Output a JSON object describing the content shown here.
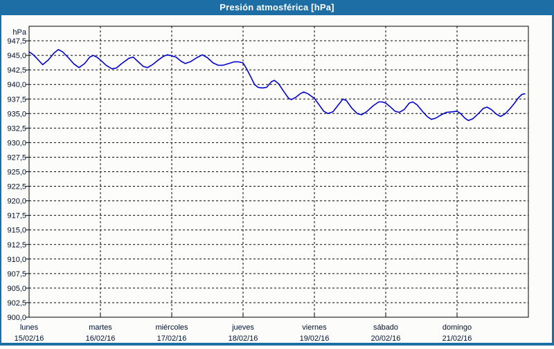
{
  "window": {
    "title": "Presión atmosférica [hPa]"
  },
  "colors": {
    "frame_blue": "#1c6ea4",
    "title_text": "#ffffff",
    "plot_border": "#000000",
    "grid": "#000000",
    "axis_label": "#001030",
    "line_blue": "#0000d0",
    "background": "#fcfdfa"
  },
  "chart_data": {
    "type": "line",
    "title": "Presión atmosférica [hPa]",
    "ylabel": "hPa",
    "unit_label": "hPa",
    "ylim": [
      900,
      950
    ],
    "ytick_step": 2.5,
    "yticks": [
      947.5,
      945.0,
      942.5,
      940.0,
      937.5,
      935.0,
      932.5,
      930.0,
      927.5,
      925.0,
      922.5,
      920.0,
      917.5,
      915.0,
      912.5,
      910.0,
      907.5,
      905.0,
      902.5,
      900.0
    ],
    "ytick_labels": [
      "947,5",
      "945,0",
      "942,5",
      "940,0",
      "937,5",
      "935,0",
      "932,5",
      "930,0",
      "927,5",
      "925,0",
      "922,5",
      "920,0",
      "917,5",
      "915,0",
      "912,5",
      "910,0",
      "907,5",
      "905,0",
      "902,5",
      "900,0"
    ],
    "grid": "dashed",
    "legend": "none",
    "x_axis": {
      "days": [
        {
          "name": "lunes",
          "date": "15/02/16"
        },
        {
          "name": "martes",
          "date": "16/02/16"
        },
        {
          "name": "miércoles",
          "date": "17/02/16"
        },
        {
          "name": "jueves",
          "date": "18/02/16"
        },
        {
          "name": "viernes",
          "date": "19/02/16"
        },
        {
          "name": "sábado",
          "date": "20/02/16"
        },
        {
          "name": "domingo",
          "date": "21/02/16"
        }
      ]
    },
    "series": [
      {
        "name": "Presión atmosférica",
        "color": "#0000d0",
        "x_unit": "days_from_monday",
        "y_unit": "hPa",
        "points": [
          [
            0.0,
            945.6
          ],
          [
            0.05,
            945.2
          ],
          [
            0.1,
            944.6
          ],
          [
            0.19,
            943.4
          ],
          [
            0.27,
            944.2
          ],
          [
            0.35,
            945.4
          ],
          [
            0.41,
            946.0
          ],
          [
            0.47,
            945.6
          ],
          [
            0.55,
            944.6
          ],
          [
            0.63,
            943.5
          ],
          [
            0.7,
            942.9
          ],
          [
            0.78,
            943.6
          ],
          [
            0.85,
            944.7
          ],
          [
            0.9,
            945.0
          ],
          [
            0.95,
            944.7
          ],
          [
            1.0,
            944.2
          ],
          [
            1.08,
            943.3
          ],
          [
            1.16,
            942.7
          ],
          [
            1.22,
            942.8
          ],
          [
            1.3,
            943.6
          ],
          [
            1.4,
            944.5
          ],
          [
            1.46,
            944.7
          ],
          [
            1.52,
            944.0
          ],
          [
            1.6,
            943.1
          ],
          [
            1.66,
            942.9
          ],
          [
            1.73,
            943.4
          ],
          [
            1.8,
            944.1
          ],
          [
            1.88,
            944.8
          ],
          [
            1.94,
            945.1
          ],
          [
            2.0,
            944.9
          ],
          [
            2.06,
            944.7
          ],
          [
            2.13,
            944.0
          ],
          [
            2.19,
            943.6
          ],
          [
            2.26,
            943.9
          ],
          [
            2.35,
            944.6
          ],
          [
            2.43,
            945.1
          ],
          [
            2.5,
            944.6
          ],
          [
            2.58,
            943.7
          ],
          [
            2.65,
            943.3
          ],
          [
            2.72,
            943.3
          ],
          [
            2.8,
            943.6
          ],
          [
            2.88,
            943.9
          ],
          [
            2.93,
            943.9
          ],
          [
            3.0,
            943.7
          ],
          [
            3.05,
            942.7
          ],
          [
            3.1,
            941.5
          ],
          [
            3.16,
            940.0
          ],
          [
            3.21,
            939.5
          ],
          [
            3.27,
            939.4
          ],
          [
            3.33,
            939.5
          ],
          [
            3.4,
            940.5
          ],
          [
            3.44,
            940.7
          ],
          [
            3.5,
            940.1
          ],
          [
            3.57,
            938.8
          ],
          [
            3.64,
            937.6
          ],
          [
            3.68,
            937.4
          ],
          [
            3.74,
            937.8
          ],
          [
            3.8,
            938.4
          ],
          [
            3.85,
            938.7
          ],
          [
            3.91,
            938.4
          ],
          [
            4.0,
            937.6
          ],
          [
            4.06,
            936.6
          ],
          [
            4.13,
            935.4
          ],
          [
            4.19,
            935.0
          ],
          [
            4.26,
            935.3
          ],
          [
            4.33,
            936.4
          ],
          [
            4.4,
            937.5
          ],
          [
            4.45,
            937.2
          ],
          [
            4.52,
            936.0
          ],
          [
            4.6,
            935.0
          ],
          [
            4.66,
            934.8
          ],
          [
            4.73,
            935.3
          ],
          [
            4.82,
            936.3
          ],
          [
            4.9,
            937.0
          ],
          [
            4.95,
            937.0
          ],
          [
            5.0,
            936.8
          ],
          [
            5.06,
            936.2
          ],
          [
            5.13,
            935.4
          ],
          [
            5.19,
            935.2
          ],
          [
            5.26,
            935.7
          ],
          [
            5.33,
            936.8
          ],
          [
            5.38,
            937.0
          ],
          [
            5.44,
            936.5
          ],
          [
            5.52,
            935.3
          ],
          [
            5.58,
            934.5
          ],
          [
            5.64,
            934.0
          ],
          [
            5.7,
            934.2
          ],
          [
            5.78,
            934.8
          ],
          [
            5.85,
            935.2
          ],
          [
            5.93,
            935.3
          ],
          [
            6.0,
            935.4
          ],
          [
            6.05,
            935.0
          ],
          [
            6.11,
            934.2
          ],
          [
            6.16,
            933.8
          ],
          [
            6.22,
            934.1
          ],
          [
            6.3,
            935.0
          ],
          [
            6.37,
            935.9
          ],
          [
            6.42,
            936.1
          ],
          [
            6.48,
            935.7
          ],
          [
            6.55,
            934.9
          ],
          [
            6.61,
            934.5
          ],
          [
            6.67,
            934.9
          ],
          [
            6.74,
            935.8
          ],
          [
            6.8,
            936.7
          ],
          [
            6.86,
            937.7
          ],
          [
            6.91,
            938.3
          ],
          [
            6.95,
            938.4
          ]
        ]
      }
    ]
  }
}
